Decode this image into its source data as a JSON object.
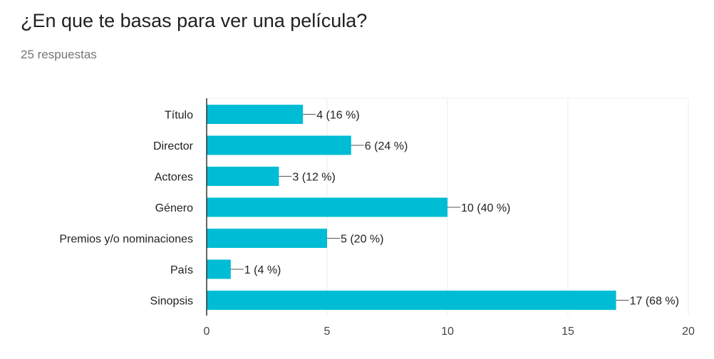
{
  "card": {
    "title": "¿En que te basas para ver una película?",
    "subtitle": "25 respuestas"
  },
  "colors": {
    "bar": "#00bcd4",
    "grid": "#eeeeee",
    "axis": "#333333",
    "leader": "#555555"
  },
  "chart_data": {
    "type": "bar",
    "orientation": "horizontal",
    "title": "¿En que te basas para ver una película?",
    "categories": [
      "Título",
      "Director",
      "Actores",
      "Género",
      "Premios y/o nominaciones",
      "País",
      "Sinopsis"
    ],
    "values": [
      4,
      6,
      3,
      10,
      5,
      1,
      17
    ],
    "data_labels": [
      "4 (16 %)",
      "6 (24 %)",
      "3 (12 %)",
      "10 (40 %)",
      "5 (20 %)",
      "1 (4 %)",
      "17 (68 %)"
    ],
    "xlim": [
      0,
      20
    ],
    "xticks": [
      0,
      5,
      10,
      15,
      20
    ],
    "xlabel": "",
    "ylabel": "",
    "grid": true,
    "legend": "none"
  }
}
